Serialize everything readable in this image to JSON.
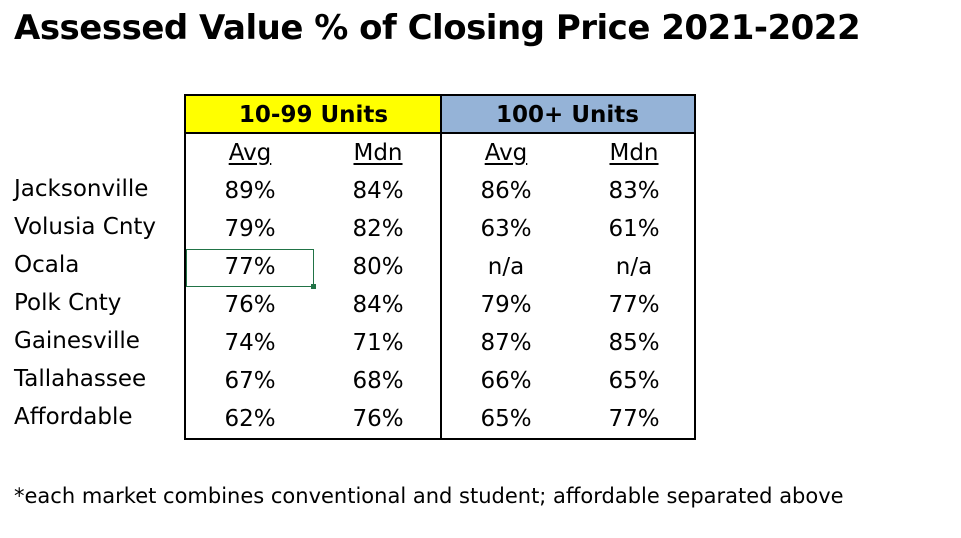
{
  "title": "Assessed Value % of Closing Price 2021-2022",
  "colors": {
    "group_a_bg": "#ffff00",
    "group_b_bg": "#95b3d7",
    "selection_border": "#217346"
  },
  "table": {
    "groups": [
      "10-99 Units",
      "100+ Units"
    ],
    "subheaders": [
      "Avg",
      "Mdn",
      "Avg",
      "Mdn"
    ],
    "rows": [
      {
        "label": "Jacksonville",
        "values": [
          "89%",
          "84%",
          "86%",
          "83%"
        ]
      },
      {
        "label": "Volusia Cnty",
        "values": [
          "79%",
          "82%",
          "63%",
          "61%"
        ]
      },
      {
        "label": "Ocala",
        "values": [
          "77%",
          "80%",
          "n/a",
          "n/a"
        ]
      },
      {
        "label": "Polk Cnty",
        "values": [
          "76%",
          "84%",
          "79%",
          "77%"
        ]
      },
      {
        "label": "Gainesville",
        "values": [
          "74%",
          "71%",
          "87%",
          "85%"
        ]
      },
      {
        "label": "Tallahassee",
        "values": [
          "67%",
          "68%",
          "66%",
          "65%"
        ]
      },
      {
        "label": "Affordable",
        "values": [
          "62%",
          "76%",
          "65%",
          "77%"
        ]
      }
    ],
    "selected_cell": "Ocala / 10-99 Units Avg"
  },
  "footnote": "*each market combines conventional and student; affordable separated above"
}
